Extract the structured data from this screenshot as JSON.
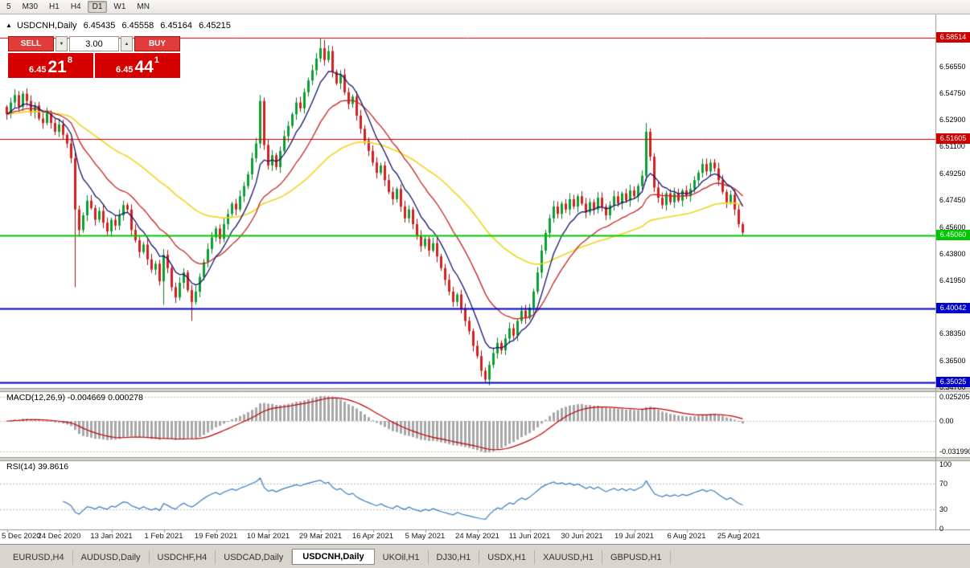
{
  "toolbar": {
    "timeframes": [
      {
        "label": "5",
        "active": false
      },
      {
        "label": "M30",
        "active": false
      },
      {
        "label": "H1",
        "active": false
      },
      {
        "label": "H4",
        "active": false
      },
      {
        "label": "D1",
        "active": true
      },
      {
        "label": "W1",
        "active": false
      },
      {
        "label": "MN",
        "active": false
      }
    ]
  },
  "chart": {
    "title": {
      "symbol": "USDCNH,Daily",
      "open": "6.45435",
      "high": "6.45558",
      "low": "6.45164",
      "close": "6.45215"
    },
    "trade_panel": {
      "sell_label": "SELL",
      "buy_label": "BUY",
      "volume": "3.00",
      "sell_price": {
        "small": "6.45",
        "big": "21",
        "sup": "8"
      },
      "buy_price": {
        "small": "6.45",
        "big": "44",
        "sup": "1"
      }
    },
    "price_ticks": [
      "6.56550",
      "6.54750",
      "6.52900",
      "6.51100",
      "6.49250",
      "6.47450",
      "6.45600",
      "6.43800",
      "6.41950",
      "6.40150",
      "6.38350",
      "6.36500",
      "6.34700"
    ],
    "levels": [
      {
        "label": "6.58514",
        "value": 6.58514,
        "color": "#cc0000",
        "width": 1
      },
      {
        "label": "6.51605",
        "value": 6.51605,
        "color": "#cc0000",
        "width": 1
      },
      {
        "label": "6.45060",
        "value": 6.4506,
        "color": "#00c800",
        "width": 2
      },
      {
        "label": "6.40042",
        "value": 6.40042,
        "color": "#0000c8",
        "width": 2
      },
      {
        "label": "6.35025",
        "value": 6.35025,
        "color": "#0000c8",
        "width": 2
      }
    ],
    "dates": [
      {
        "label": "5 Dec 2020",
        "index": 0
      },
      {
        "label": "24 Dec 2020",
        "index": 13
      },
      {
        "label": "13 Jan 2021",
        "index": 26
      },
      {
        "label": "1 Feb 2021",
        "index": 39
      },
      {
        "label": "19 Feb 2021",
        "index": 52
      },
      {
        "label": "10 Mar 2021",
        "index": 65
      },
      {
        "label": "29 Mar 2021",
        "index": 78
      },
      {
        "label": "16 Apr 2021",
        "index": 91
      },
      {
        "label": "5 May 2021",
        "index": 104
      },
      {
        "label": "24 May 2021",
        "index": 117
      },
      {
        "label": "11 Jun 2021",
        "index": 130
      },
      {
        "label": "30 Jun 2021",
        "index": 143
      },
      {
        "label": "19 Jul 2021",
        "index": 156
      },
      {
        "label": "6 Aug 2021",
        "index": 169
      },
      {
        "label": "25 Aug 2021",
        "index": 182
      }
    ]
  },
  "macd": {
    "header": "MACD(12,26,9) -0.004669 0.000278",
    "ticks": [
      "0.025205",
      "0.00",
      "-0.031990"
    ]
  },
  "rsi": {
    "header": "RSI(14) 39.8616",
    "ticks": [
      "100",
      "70",
      "30",
      "0"
    ]
  },
  "tabs": [
    {
      "label": "EURUSD,H4",
      "active": false
    },
    {
      "label": "AUDUSD,Daily",
      "active": false
    },
    {
      "label": "USDCHF,H4",
      "active": false
    },
    {
      "label": "USDCAD,Daily",
      "active": false
    },
    {
      "label": "USDCNH,Daily",
      "active": true
    },
    {
      "label": "UKOil,H1",
      "active": false
    },
    {
      "label": "DJ30,H1",
      "active": false
    },
    {
      "label": "USDX,H1",
      "active": false
    },
    {
      "label": "XAUUSD,H1",
      "active": false
    },
    {
      "label": "GBPUSD,H1",
      "active": false
    }
  ],
  "chart_data": {
    "type": "candlestick",
    "symbol": "USDCNH",
    "timeframe": "Daily",
    "current_bar": {
      "open": 6.45435,
      "high": 6.45558,
      "low": 6.45164,
      "close": 6.45215
    },
    "price_levels": [
      6.58514,
      6.51605,
      6.4506,
      6.40042,
      6.35025
    ],
    "y_axis_ticks": [
      6.5655,
      6.5475,
      6.529,
      6.511,
      6.4925,
      6.4745,
      6.456,
      6.438,
      6.4195,
      6.4015,
      6.3835,
      6.365,
      6.347
    ],
    "x_axis_dates": [
      "5 Dec 2020",
      "24 Dec 2020",
      "13 Jan 2021",
      "1 Feb 2021",
      "19 Feb 2021",
      "10 Mar 2021",
      "29 Mar 2021",
      "16 Apr 2021",
      "5 May 2021",
      "24 May 2021",
      "11 Jun 2021",
      "30 Jun 2021",
      "19 Jul 2021",
      "6 Aug 2021",
      "25 Aug 2021"
    ],
    "closes_estimated": [
      6.533,
      6.541,
      6.546,
      6.538,
      6.547,
      6.542,
      6.534,
      6.539,
      6.53,
      6.527,
      6.534,
      6.527,
      6.521,
      6.526,
      6.519,
      6.513,
      6.503,
      6.468,
      6.454,
      6.464,
      6.474,
      6.469,
      6.461,
      6.467,
      6.459,
      6.453,
      6.461,
      6.457,
      6.464,
      6.471,
      6.468,
      6.454,
      6.447,
      6.439,
      6.444,
      6.434,
      6.427,
      6.431,
      6.419,
      6.437,
      6.428,
      6.415,
      6.408,
      6.418,
      6.425,
      6.413,
      6.405,
      6.412,
      6.422,
      6.432,
      6.441,
      6.449,
      6.455,
      6.448,
      6.458,
      6.465,
      6.472,
      6.468,
      6.477,
      6.484,
      6.492,
      6.503,
      6.513,
      6.542,
      6.512,
      6.498,
      6.505,
      6.497,
      6.508,
      6.518,
      6.525,
      6.533,
      6.541,
      6.537,
      6.548,
      6.556,
      6.563,
      6.571,
      6.578,
      6.57,
      6.576,
      6.562,
      6.554,
      6.56,
      6.548,
      6.54,
      6.545,
      6.532,
      6.523,
      6.515,
      6.508,
      6.5,
      6.493,
      6.498,
      6.488,
      6.48,
      6.475,
      6.482,
      6.47,
      6.462,
      6.468,
      6.458,
      6.45,
      6.443,
      6.448,
      6.44,
      6.445,
      6.436,
      6.428,
      6.42,
      6.412,
      6.405,
      6.41,
      6.4,
      6.392,
      6.385,
      6.375,
      6.368,
      6.358,
      6.352,
      6.362,
      6.37,
      6.377,
      6.372,
      6.38,
      6.387,
      6.382,
      6.392,
      6.399,
      6.394,
      6.401,
      6.412,
      6.425,
      6.44,
      6.452,
      6.462,
      6.47,
      6.465,
      6.472,
      6.468,
      6.475,
      6.47,
      6.477,
      6.472,
      6.466,
      6.473,
      6.468,
      6.476,
      6.47,
      6.464,
      6.471,
      6.477,
      6.472,
      6.479,
      6.474,
      6.481,
      6.477,
      6.484,
      6.491,
      6.521,
      6.504,
      6.483,
      6.476,
      6.471,
      6.479,
      6.473,
      6.479,
      6.474,
      6.481,
      6.477,
      6.482,
      6.488,
      6.493,
      6.499,
      6.494,
      6.5,
      6.496,
      6.488,
      6.48,
      6.473,
      6.478,
      6.468,
      6.458,
      6.4522
    ],
    "wick_overrides": {
      "17": {
        "low": 6.415
      },
      "39": {
        "low": 6.403
      },
      "46": {
        "low": 6.392
      },
      "63": {
        "high": 6.546
      },
      "78": {
        "high": 6.5851
      },
      "79": {
        "high": 6.5838
      },
      "119": {
        "low": 6.3502
      },
      "159": {
        "high": 6.527
      },
      "183": {
        "low": 6.4505
      }
    },
    "moving_averages": [
      {
        "type": "EMA",
        "period": 8,
        "color": "#15156e"
      },
      {
        "type": "EMA",
        "period": 20,
        "color": "#cc2222"
      },
      {
        "type": "EMA",
        "period": 55,
        "color": "#efd51d"
      }
    ],
    "indicators": {
      "macd": {
        "fast": 12,
        "slow": 26,
        "signal": 9,
        "value": -0.004669,
        "signal_value": 0.000278,
        "axis_max": 0.025205,
        "axis_min": -0.03199
      },
      "rsi": {
        "period": 14,
        "value": 39.8616,
        "levels": [
          70,
          30
        ]
      }
    },
    "colors": {
      "bull": "#0b9e32",
      "bear": "#d32020",
      "bull_wick": "#067b22",
      "bear_wick": "#a01010",
      "macd_hist": "#a8a8a8",
      "macd_signal": "#c00000",
      "rsi_line": "#3b7bbf"
    }
  }
}
